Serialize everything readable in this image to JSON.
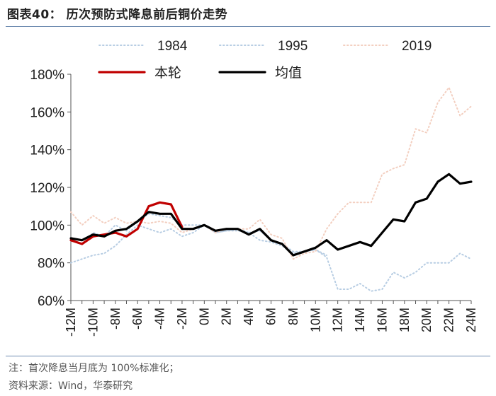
{
  "title": "图表40：  历次预防式降息前后铜价走势",
  "note": "注：首次降息当月底为 100%标准化；",
  "source": "资料来源：Wind，华泰研究",
  "colors": {
    "s1984": "#b7cde3",
    "s1995": "#b7cde3",
    "s2019": "#f3cfc0",
    "current": "#c00000",
    "average": "#000000",
    "axis": "#555555",
    "rule": "#6d8bb0"
  },
  "chart_data": {
    "type": "line",
    "x_labels": [
      "-12M",
      "-10M",
      "-8M",
      "-6M",
      "-4M",
      "-2M",
      "0M",
      "2M",
      "4M",
      "6M",
      "8M",
      "10M",
      "12M",
      "14M",
      "16M",
      "18M",
      "20M",
      "22M",
      "24M"
    ],
    "x_range": [
      -12,
      24
    ],
    "y_range": [
      60,
      180
    ],
    "y_ticks": [
      60,
      80,
      100,
      120,
      140,
      160,
      180
    ],
    "y_tick_labels": [
      "60%",
      "80%",
      "100%",
      "120%",
      "140%",
      "160%",
      "180%"
    ],
    "legend_position": "top",
    "series": [
      {
        "name": "1984",
        "style": "dotted",
        "color_key": "s1984",
        "x": [
          -12,
          -11,
          -10,
          -9,
          -8,
          -7,
          -6,
          -5,
          -4,
          -3,
          -2,
          -1,
          0,
          1,
          2,
          3,
          4,
          5,
          6,
          7,
          8,
          9,
          10,
          11,
          12,
          13,
          14,
          15,
          16,
          17,
          18,
          19,
          20,
          21,
          22,
          23,
          24
        ],
        "y": [
          80,
          82,
          84,
          85,
          89,
          95,
          100,
          98,
          96,
          98,
          94,
          96,
          100,
          96,
          97,
          98,
          96,
          92,
          91,
          89,
          85,
          86,
          87,
          83,
          66,
          66,
          69,
          65,
          66,
          75,
          72,
          75,
          80,
          80,
          80,
          85,
          82
        ]
      },
      {
        "name": "1995",
        "style": "dotted",
        "color_key": "s1995",
        "x": [
          -12,
          -11,
          -10,
          -9,
          -8,
          -7,
          -6,
          -5,
          -4,
          -3,
          -2,
          -1,
          0,
          1,
          2,
          3,
          4,
          5,
          6,
          7,
          8,
          9,
          10,
          11
        ],
        "y": [
          92,
          90,
          96,
          94,
          100,
          97,
          102,
          106,
          105,
          104,
          100,
          100,
          100,
          96,
          97,
          97,
          96,
          97,
          92,
          90,
          86,
          86,
          87,
          84
        ]
      },
      {
        "name": "2019",
        "style": "dotted",
        "color_key": "s2019",
        "x": [
          -12,
          -11,
          -10,
          -9,
          -8,
          -7,
          -6,
          -5,
          -4,
          -3,
          -2,
          -1,
          0,
          1,
          2,
          3,
          4,
          5,
          6,
          7,
          8,
          9,
          10,
          11,
          12,
          13,
          14,
          15,
          16,
          17,
          18,
          19,
          20,
          21,
          22,
          23,
          24
        ],
        "y": [
          107,
          100,
          105,
          101,
          104,
          101,
          102,
          101,
          102,
          101,
          96,
          98,
          100,
          96,
          98,
          98,
          98,
          103,
          95,
          93,
          82,
          85,
          86,
          98,
          106,
          112,
          112,
          112,
          127,
          130,
          132,
          151,
          149,
          165,
          173,
          158,
          163
        ]
      },
      {
        "name": "本轮",
        "style": "solid",
        "color_key": "current",
        "x": [
          -12,
          -11,
          -10,
          -9,
          -8,
          -7,
          -6,
          -5,
          -4,
          -3,
          -2
        ],
        "y": [
          92,
          90,
          94,
          95,
          96,
          94,
          98,
          110,
          112,
          111,
          99
        ]
      },
      {
        "name": "均值",
        "style": "solid",
        "color_key": "average",
        "x": [
          -12,
          -11,
          -10,
          -9,
          -8,
          -7,
          -6,
          -5,
          -4,
          -3,
          -2,
          -1,
          0,
          1,
          2,
          3,
          4,
          5,
          6,
          7,
          8,
          9,
          10,
          11,
          12,
          13,
          14,
          15,
          16,
          17,
          18,
          19,
          20,
          21,
          22,
          23,
          24
        ],
        "y": [
          93,
          92,
          95,
          94,
          97,
          98,
          102,
          107,
          106,
          106,
          98,
          98,
          100,
          97,
          98,
          98,
          95,
          98,
          92,
          90,
          84,
          86,
          88,
          92,
          87,
          89,
          91,
          89,
          96,
          103,
          102,
          112,
          114,
          123,
          127,
          122,
          123
        ]
      }
    ]
  }
}
